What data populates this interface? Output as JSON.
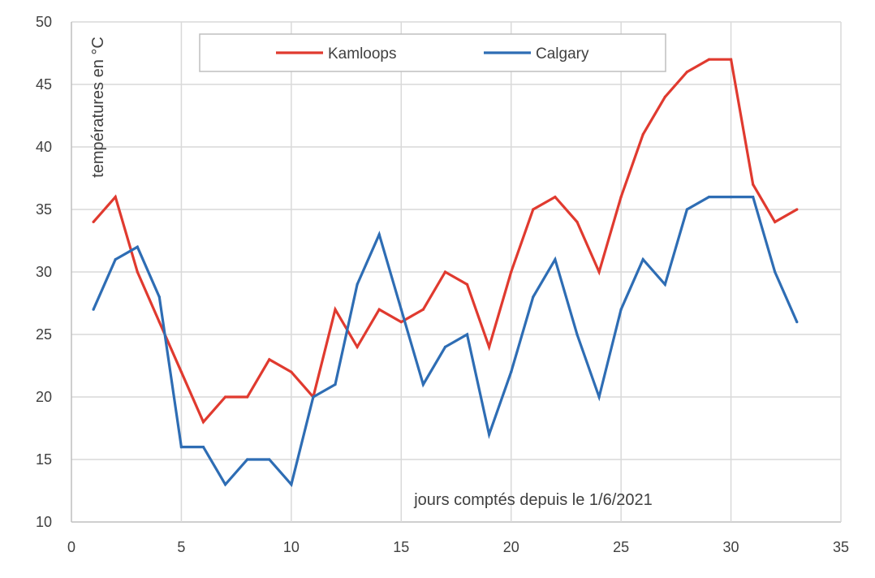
{
  "chart_data": {
    "type": "line",
    "title": "",
    "xlabel": "jours comptés depuis le 1/6/2021",
    "ylabel": "températures en °C",
    "xlim": [
      0,
      35
    ],
    "ylim": [
      10,
      50
    ],
    "xticks": [
      0,
      5,
      10,
      15,
      20,
      25,
      30,
      35
    ],
    "yticks": [
      10,
      15,
      20,
      25,
      30,
      35,
      40,
      45,
      50
    ],
    "grid": true,
    "legend_position": "top",
    "x": [
      1,
      2,
      3,
      4,
      5,
      6,
      7,
      8,
      9,
      10,
      11,
      12,
      13,
      14,
      15,
      16,
      17,
      18,
      19,
      20,
      21,
      22,
      23,
      24,
      25,
      26,
      27,
      28,
      29,
      30,
      31,
      32,
      33
    ],
    "series": [
      {
        "name": "Kamloops",
        "color": "#e03a2f",
        "values": [
          34,
          36,
          30,
          26,
          22,
          18,
          20,
          20,
          23,
          22,
          20,
          27,
          24,
          27,
          26,
          27,
          30,
          29,
          24,
          30,
          35,
          36,
          34,
          30,
          36,
          41,
          44,
          46,
          47,
          47,
          37,
          34,
          35
        ]
      },
      {
        "name": "Calgary",
        "color": "#2e6db4",
        "values": [
          27,
          31,
          32,
          28,
          16,
          16,
          13,
          15,
          15,
          13,
          20,
          21,
          29,
          33,
          27,
          21,
          24,
          25,
          17,
          22,
          28,
          31,
          25,
          20,
          27,
          31,
          29,
          35,
          36,
          36,
          36,
          30,
          26
        ]
      }
    ]
  }
}
